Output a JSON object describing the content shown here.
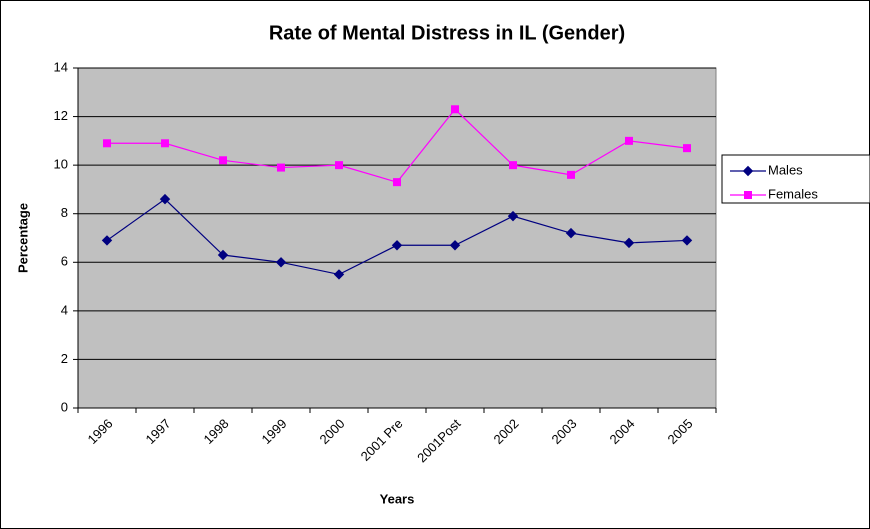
{
  "chart_data": {
    "type": "line",
    "title": "Rate of Mental Distress in IL (Gender)",
    "x_label": "Years",
    "y_label": "Percentage",
    "categories": [
      "1996",
      "1997",
      "1998",
      "1999",
      "2000",
      "2001 Pre",
      "2001Post",
      "2002",
      "2003",
      "2004",
      "2005"
    ],
    "series": [
      {
        "name": "Males",
        "color": "#000080",
        "values": [
          6.9,
          8.6,
          6.3,
          6.0,
          5.5,
          6.7,
          6.7,
          7.9,
          7.2,
          6.8,
          6.9
        ]
      },
      {
        "name": "Females",
        "color": "#ff00ff",
        "values": [
          10.9,
          10.9,
          10.2,
          9.9,
          10.0,
          9.3,
          12.3,
          10.0,
          9.6,
          11.0,
          10.7
        ]
      }
    ],
    "ylim": [
      0,
      14
    ],
    "yticks": [
      0,
      2,
      4,
      6,
      8,
      10,
      12,
      14
    ],
    "grid": true,
    "legend": "right"
  }
}
